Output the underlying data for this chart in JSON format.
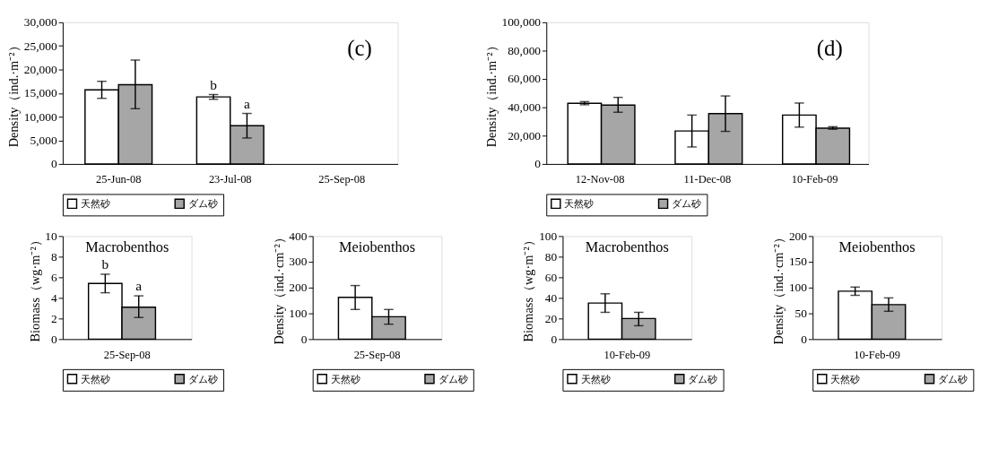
{
  "chart_data": [
    {
      "type": "bar",
      "title": "(c)",
      "ylabel": "Density（ind.·m⁻²）",
      "categories": [
        "25-Jun-08",
        "23-Jul-08",
        "25-Sep-08"
      ],
      "ylim": [
        0,
        30000
      ],
      "yticks": [
        0,
        {
          "value": 5000,
          "label": "5,000"
        },
        {
          "value": 10000,
          "label": "10,000"
        },
        {
          "value": 15000,
          "label": "15,000"
        },
        {
          "value": 20000,
          "label": "20,000"
        },
        {
          "value": 25000,
          "label": "25,000"
        },
        {
          "value": 30000,
          "label": "30,000"
        }
      ],
      "legend": "bottom",
      "series": [
        {
          "name": "天然砂",
          "color": "#ffffff",
          "values": [
            15700,
            14200,
            null
          ],
          "errors": [
            [
              13900,
              17500
            ],
            [
              13700,
              14700
            ],
            null
          ],
          "value_labels": [
            null,
            "b",
            null
          ]
        },
        {
          "name": "ダム砂",
          "color": "#a6a6a6",
          "values": [
            16800,
            8100,
            null
          ],
          "errors": [
            [
              11700,
              22000
            ],
            [
              5500,
              10700
            ],
            null
          ],
          "value_labels": [
            null,
            "a",
            null
          ]
        }
      ]
    },
    {
      "type": "bar",
      "title": "(d)",
      "ylabel": "Density（ind.·m⁻²）",
      "categories": [
        "12-Nov-08",
        "11-Dec-08",
        "10-Feb-09"
      ],
      "ylim": [
        0,
        100000
      ],
      "yticks": [
        0,
        {
          "value": 20000,
          "label": "20,000"
        },
        {
          "value": 40000,
          "label": "40,000"
        },
        {
          "value": 60000,
          "label": "60,000"
        },
        {
          "value": 80000,
          "label": "80,000"
        },
        {
          "value": 100000,
          "label": "100,000"
        }
      ],
      "legend": "bottom",
      "series": [
        {
          "name": "天然砂",
          "color": "#ffffff",
          "values": [
            42800,
            23300,
            34500
          ],
          "errors": [
            [
              41800,
              44000
            ],
            [
              12000,
              34500
            ],
            [
              26000,
              43000
            ]
          ]
        },
        {
          "name": "ダム砂",
          "color": "#a6a6a6",
          "values": [
            41500,
            35500,
            25300
          ],
          "errors": [
            [
              36500,
              47000
            ],
            [
              23000,
              48000
            ],
            [
              24500,
              26300
            ]
          ]
        }
      ]
    },
    {
      "type": "bar",
      "title": "Macrobenthos",
      "ylabel": "Biomass（wg·m⁻²）",
      "categories": [
        "25-Sep-08"
      ],
      "ylim": [
        0,
        10
      ],
      "yticks": [
        0,
        2,
        4,
        6,
        8,
        10
      ],
      "legend": "bottom",
      "series": [
        {
          "name": "天然砂",
          "color": "#ffffff",
          "values": [
            5.4
          ],
          "errors": [
            [
              4.5,
              6.3
            ]
          ],
          "value_labels": [
            "b"
          ]
        },
        {
          "name": "ダム砂",
          "color": "#a6a6a6",
          "values": [
            3.1
          ],
          "errors": [
            [
              2.1,
              4.2
            ]
          ],
          "value_labels": [
            "a"
          ]
        }
      ]
    },
    {
      "type": "bar",
      "title": "Meiobenthos",
      "ylabel": "Density（ind.·cm⁻²）",
      "categories": [
        "25-Sep-08"
      ],
      "ylim": [
        0,
        400
      ],
      "yticks": [
        0,
        100,
        200,
        300,
        400
      ],
      "legend": "bottom",
      "series": [
        {
          "name": "天然砂",
          "color": "#ffffff",
          "values": [
            162
          ],
          "errors": [
            [
              115,
              208
            ]
          ]
        },
        {
          "name": "ダム砂",
          "color": "#a6a6a6",
          "values": [
            87
          ],
          "errors": [
            [
              58,
              115
            ]
          ]
        }
      ]
    },
    {
      "type": "bar",
      "title": "Macrobenthos",
      "ylabel": "Biomass（wg·m⁻²）",
      "categories": [
        "10-Feb-09"
      ],
      "ylim": [
        0,
        100
      ],
      "yticks": [
        0,
        20,
        40,
        60,
        80,
        100
      ],
      "legend": "bottom",
      "series": [
        {
          "name": "天然砂",
          "color": "#ffffff",
          "values": [
            35
          ],
          "errors": [
            [
              26,
              44
            ]
          ]
        },
        {
          "name": "ダム砂",
          "color": "#a6a6a6",
          "values": [
            20
          ],
          "errors": [
            [
              13,
              26
            ]
          ]
        }
      ]
    },
    {
      "type": "bar",
      "title": "Meiobenthos",
      "ylabel": "Density（ind.·cm⁻²）",
      "categories": [
        "10-Feb-09"
      ],
      "ylim": [
        0,
        200
      ],
      "yticks": [
        0,
        50,
        100,
        150,
        200
      ],
      "legend": "bottom",
      "series": [
        {
          "name": "天然砂",
          "color": "#ffffff",
          "values": [
            93
          ],
          "errors": [
            [
              85,
              101
            ]
          ]
        },
        {
          "name": "ダム砂",
          "color": "#a6a6a6",
          "values": [
            67
          ],
          "errors": [
            [
              54,
              80
            ]
          ]
        }
      ]
    }
  ]
}
